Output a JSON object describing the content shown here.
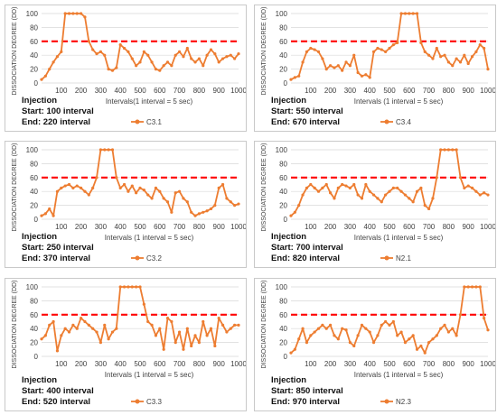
{
  "chart_data": [
    {
      "type": "line",
      "series_name": "C3.1",
      "xlabel": "Intervals(1 interval = 5 sec)",
      "ylabel": "DISSOCIATION  DEGREE (DD)",
      "xticks": [
        100,
        200,
        300,
        400,
        500,
        600,
        700,
        800,
        900,
        1000
      ],
      "yticks": [
        0,
        20,
        40,
        60,
        80,
        100
      ],
      "xlim": [
        0,
        1000
      ],
      "ylim": [
        0,
        100
      ],
      "threshold": 60,
      "injection": {
        "heading": "Injection",
        "start_label": "Start:",
        "start_value": "100 interval",
        "end_label": "End:",
        "end_value": "220 interval"
      },
      "x": [
        0,
        20,
        40,
        60,
        80,
        100,
        120,
        140,
        160,
        180,
        200,
        220,
        240,
        260,
        280,
        300,
        320,
        340,
        360,
        380,
        400,
        420,
        440,
        460,
        480,
        500,
        520,
        540,
        560,
        580,
        600,
        620,
        640,
        660,
        680,
        700,
        720,
        740,
        760,
        780,
        800,
        820,
        840,
        860,
        880,
        900,
        920,
        940,
        960,
        980,
        1000
      ],
      "y": [
        5,
        10,
        20,
        30,
        38,
        45,
        100,
        100,
        100,
        100,
        100,
        95,
        60,
        48,
        42,
        45,
        40,
        20,
        18,
        22,
        55,
        50,
        45,
        35,
        25,
        30,
        45,
        40,
        30,
        20,
        18,
        25,
        30,
        25,
        40,
        45,
        38,
        50,
        35,
        30,
        35,
        25,
        40,
        48,
        42,
        30,
        35,
        38,
        40,
        35,
        42
      ]
    },
    {
      "type": "line",
      "series_name": "C3.4",
      "xlabel": "Intervals (1 interval = 5 sec)",
      "ylabel": "DISSOCIATION  DEGREE (DD)",
      "xticks": [
        100,
        200,
        300,
        400,
        500,
        600,
        700,
        800,
        900,
        1000
      ],
      "yticks": [
        0,
        20,
        40,
        60,
        80,
        100
      ],
      "xlim": [
        0,
        1000
      ],
      "ylim": [
        0,
        100
      ],
      "threshold": 60,
      "injection": {
        "heading": "Injection",
        "start_label": "Start:",
        "start_value": "550 interval",
        "end_label": "End:",
        "end_value": "670 interval"
      },
      "x": [
        0,
        20,
        40,
        60,
        80,
        100,
        120,
        140,
        160,
        180,
        200,
        220,
        240,
        260,
        280,
        300,
        320,
        340,
        360,
        380,
        400,
        420,
        440,
        460,
        480,
        500,
        520,
        540,
        560,
        580,
        600,
        620,
        640,
        660,
        680,
        700,
        720,
        740,
        760,
        780,
        800,
        820,
        840,
        860,
        880,
        900,
        920,
        940,
        960,
        980,
        1000
      ],
      "y": [
        5,
        8,
        10,
        30,
        45,
        50,
        48,
        45,
        35,
        20,
        25,
        22,
        25,
        18,
        30,
        25,
        40,
        15,
        10,
        12,
        8,
        45,
        50,
        48,
        45,
        50,
        55,
        58,
        100,
        100,
        100,
        100,
        100,
        58,
        45,
        40,
        35,
        50,
        38,
        40,
        30,
        25,
        35,
        30,
        40,
        28,
        38,
        45,
        55,
        50,
        20
      ]
    },
    {
      "type": "line",
      "series_name": "C3.2",
      "xlabel": "Intervals (1 interval = 5 sec)",
      "ylabel": "DISSOCIATION  DEGREE (DD)",
      "xticks": [
        100,
        200,
        300,
        400,
        500,
        600,
        700,
        800,
        900,
        1000
      ],
      "yticks": [
        0,
        20,
        40,
        60,
        80,
        100
      ],
      "xlim": [
        0,
        1000
      ],
      "ylim": [
        0,
        100
      ],
      "threshold": 60,
      "injection": {
        "heading": "Injection",
        "start_label": "Start:",
        "start_value": "250 interval",
        "end_label": "End:",
        "end_value": "370 interval"
      },
      "x": [
        0,
        20,
        40,
        60,
        80,
        100,
        120,
        140,
        160,
        180,
        200,
        220,
        240,
        260,
        280,
        300,
        320,
        340,
        360,
        380,
        400,
        420,
        440,
        460,
        480,
        500,
        520,
        540,
        560,
        580,
        600,
        620,
        640,
        660,
        680,
        700,
        720,
        740,
        760,
        780,
        800,
        820,
        840,
        860,
        880,
        900,
        920,
        940,
        960,
        980,
        1000
      ],
      "y": [
        5,
        8,
        15,
        5,
        40,
        45,
        48,
        50,
        45,
        48,
        45,
        40,
        35,
        45,
        60,
        100,
        100,
        100,
        100,
        60,
        45,
        50,
        40,
        48,
        38,
        45,
        42,
        35,
        30,
        45,
        40,
        30,
        25,
        10,
        38,
        40,
        30,
        25,
        10,
        5,
        8,
        10,
        12,
        15,
        20,
        45,
        50,
        30,
        25,
        20,
        22
      ]
    },
    {
      "type": "line",
      "series_name": "N2.1",
      "xlabel": "Intervals (1 interval = 5 sec)",
      "ylabel": "DISSOCIATION  DEGREE (DD)",
      "xticks": [
        100,
        200,
        300,
        400,
        500,
        600,
        700,
        800,
        900,
        1000
      ],
      "yticks": [
        0,
        20,
        40,
        60,
        80,
        100
      ],
      "xlim": [
        0,
        1000
      ],
      "ylim": [
        0,
        100
      ],
      "threshold": 60,
      "injection": {
        "heading": "Injection",
        "start_label": "Start:",
        "start_value": "700 interval",
        "end_label": "End:",
        "end_value": "820 interval"
      },
      "x": [
        0,
        20,
        40,
        60,
        80,
        100,
        120,
        140,
        160,
        180,
        200,
        220,
        240,
        260,
        280,
        300,
        320,
        340,
        360,
        380,
        400,
        420,
        440,
        460,
        480,
        500,
        520,
        540,
        560,
        580,
        600,
        620,
        640,
        660,
        680,
        700,
        720,
        740,
        760,
        780,
        800,
        820,
        840,
        860,
        880,
        900,
        920,
        940,
        960,
        980,
        1000
      ],
      "y": [
        5,
        10,
        20,
        35,
        45,
        50,
        45,
        40,
        45,
        50,
        38,
        30,
        45,
        50,
        48,
        45,
        50,
        35,
        30,
        50,
        40,
        35,
        30,
        25,
        35,
        40,
        45,
        45,
        40,
        35,
        30,
        25,
        40,
        45,
        20,
        15,
        30,
        60,
        100,
        100,
        100,
        100,
        100,
        60,
        45,
        48,
        45,
        40,
        35,
        38,
        35
      ]
    },
    {
      "type": "line",
      "series_name": "C3.3",
      "xlabel": "Intervals (1 interval = 5 sec)",
      "ylabel": "DISSOCIATION  DEGREE (DD)",
      "xticks": [
        100,
        200,
        300,
        400,
        500,
        600,
        700,
        800,
        900,
        1000
      ],
      "yticks": [
        0,
        20,
        40,
        60,
        80,
        100
      ],
      "xlim": [
        0,
        1000
      ],
      "ylim": [
        0,
        100
      ],
      "threshold": 60,
      "injection": {
        "heading": "Injection",
        "start_label": "Start:",
        "start_value": "400 interval",
        "end_label": "End:",
        "end_value": "520 interval"
      },
      "x": [
        0,
        20,
        40,
        60,
        80,
        100,
        120,
        140,
        160,
        180,
        200,
        220,
        240,
        260,
        280,
        300,
        320,
        340,
        360,
        380,
        400,
        420,
        440,
        460,
        480,
        500,
        520,
        540,
        560,
        580,
        600,
        620,
        640,
        660,
        680,
        700,
        720,
        740,
        760,
        780,
        800,
        820,
        840,
        860,
        880,
        900,
        920,
        940,
        960,
        980,
        1000
      ],
      "y": [
        25,
        30,
        45,
        50,
        8,
        30,
        40,
        35,
        45,
        40,
        55,
        50,
        45,
        40,
        35,
        20,
        45,
        25,
        35,
        40,
        100,
        100,
        100,
        100,
        100,
        100,
        75,
        50,
        45,
        30,
        40,
        10,
        55,
        50,
        20,
        35,
        10,
        40,
        15,
        30,
        20,
        50,
        30,
        40,
        15,
        55,
        45,
        35,
        40,
        45,
        45
      ]
    },
    {
      "type": "line",
      "series_name": "N2.3",
      "xlabel": "Intervals (1 interval = 5 sec)",
      "ylabel": "DISSOCIATION  DEGREE (DD)",
      "xticks": [
        100,
        200,
        300,
        400,
        500,
        600,
        700,
        800,
        900,
        1000
      ],
      "yticks": [
        0,
        20,
        40,
        60,
        80,
        100
      ],
      "xlim": [
        0,
        1000
      ],
      "ylim": [
        0,
        100
      ],
      "threshold": 60,
      "injection": {
        "heading": "Injection",
        "start_label": "Start:",
        "start_value": "850 interval",
        "end_label": "End:",
        "end_value": "970 interval"
      },
      "x": [
        0,
        20,
        40,
        60,
        80,
        100,
        120,
        140,
        160,
        180,
        200,
        220,
        240,
        260,
        280,
        300,
        320,
        340,
        360,
        380,
        400,
        420,
        440,
        460,
        480,
        500,
        520,
        540,
        560,
        580,
        600,
        620,
        640,
        660,
        680,
        700,
        720,
        740,
        760,
        780,
        800,
        820,
        840,
        860,
        880,
        900,
        920,
        940,
        960,
        980,
        1000
      ],
      "y": [
        5,
        10,
        25,
        40,
        20,
        30,
        35,
        40,
        45,
        40,
        45,
        30,
        25,
        40,
        38,
        20,
        15,
        30,
        45,
        40,
        35,
        20,
        30,
        45,
        50,
        45,
        50,
        30,
        35,
        20,
        25,
        30,
        10,
        15,
        5,
        20,
        25,
        30,
        40,
        45,
        35,
        40,
        30,
        60,
        100,
        100,
        100,
        100,
        100,
        55,
        38
      ]
    }
  ]
}
